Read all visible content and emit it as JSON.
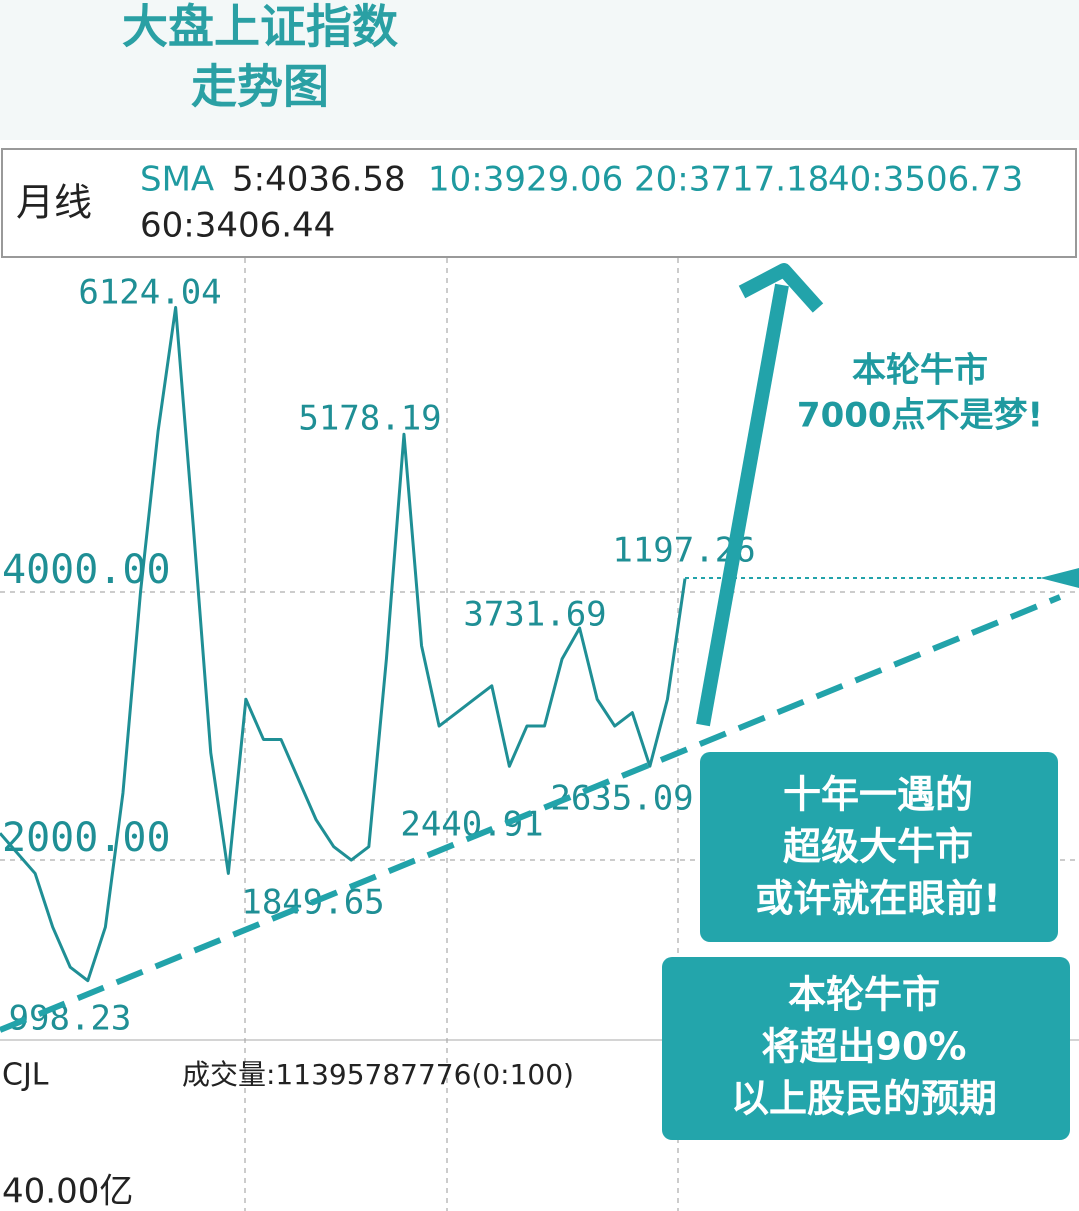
{
  "chart_data": {
    "type": "line",
    "title": [
      "大盘上证指数",
      "走势图"
    ],
    "period": "月线",
    "sma_label": "SMA",
    "sma": [
      "5:4036.58",
      "10:3929.06",
      "20:3717.18",
      "40:3506.73",
      "60:3406.44"
    ],
    "color": "#1f8f95",
    "ylim": [
      657,
      6478
    ],
    "yticks": [
      {
        "value": 2000,
        "label": "2000.00"
      },
      {
        "value": 4000,
        "label": "4000.00"
      }
    ],
    "grid": true,
    "categories": [
      null,
      null,
      null,
      null,
      null,
      null,
      null,
      null,
      null,
      null,
      null,
      null,
      null,
      null,
      null,
      null,
      null,
      null,
      null,
      null,
      null,
      null,
      null,
      null,
      null,
      null,
      null,
      null,
      null,
      null,
      null,
      null,
      null,
      null,
      null,
      null,
      null,
      null,
      null,
      null
    ],
    "values": [
      2200,
      2050,
      1900,
      1500,
      1200,
      1100,
      1500,
      2500,
      4000,
      5200,
      6124,
      4500,
      2800,
      1900,
      3200,
      2900,
      2900,
      2600,
      2300,
      2100,
      2000,
      2100,
      3500,
      5178,
      3600,
      3000,
      3100,
      3200,
      3300,
      2700,
      3000,
      3000,
      3500,
      3731,
      3200,
      3000,
      3100,
      2700,
      3200,
      4100
    ],
    "annotations": [
      "6124.04",
      "5178.19",
      "3731.69",
      "1197.26",
      "2440.91",
      "2635.09",
      "1849.65",
      "998.23"
    ],
    "volume_panel": {
      "name": "CJL",
      "label": "成交量:11395787776(0:100)",
      "tick": "40.00亿"
    },
    "callouts": [
      [
        "本轮牛市",
        "7000点不是梦!"
      ],
      [
        "十年一遇的",
        "超级大牛市",
        "或许就在眼前!"
      ],
      [
        "本轮牛市",
        "将超出90%",
        "以上股民的预期"
      ]
    ]
  }
}
